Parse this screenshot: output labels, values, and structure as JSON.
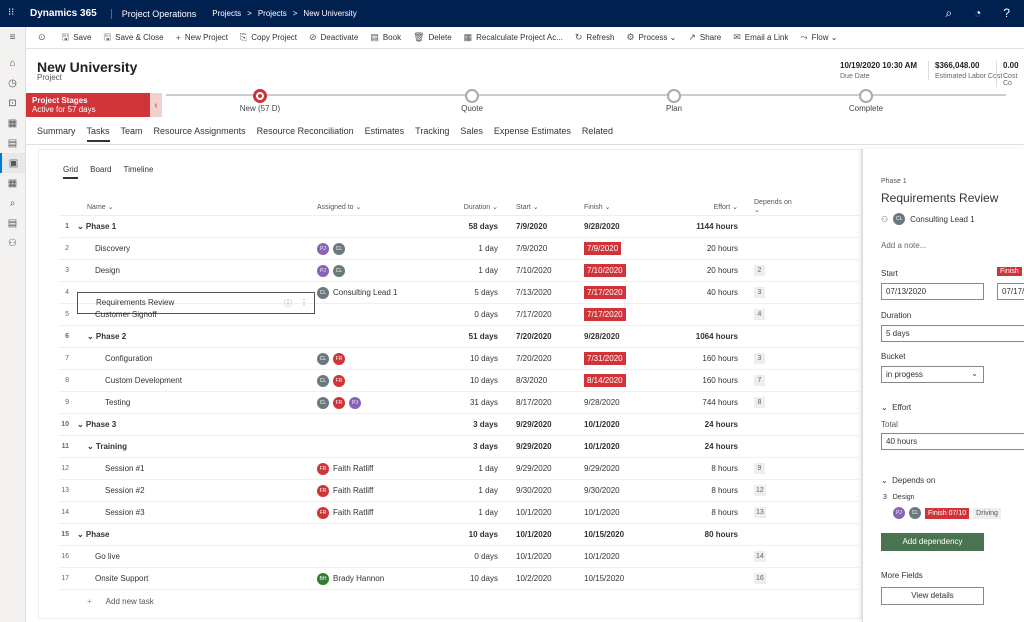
{
  "topbar": {
    "brand": "Dynamics 365",
    "app": "Project Operations",
    "crumbs": [
      "Projects",
      ">",
      "Projects",
      ">",
      "New University"
    ]
  },
  "leftnav": {
    "icons": [
      "hamburger-icon",
      "home-icon",
      "recent-icon",
      "pinned-icon",
      "calendar-icon",
      "document-icon",
      "projects-icon",
      "calendar2-icon",
      "search-doc-icon",
      "report-icon",
      "people-icon"
    ]
  },
  "cmdbar": {
    "items": [
      {
        "icon": "⊙",
        "label": ""
      },
      {
        "icon": "🖫",
        "label": "Save"
      },
      {
        "icon": "🖫",
        "label": "Save & Close"
      },
      {
        "icon": "+",
        "label": "New Project"
      },
      {
        "icon": "⎘",
        "label": "Copy Project"
      },
      {
        "icon": "⊘",
        "label": "Deactivate"
      },
      {
        "icon": "▤",
        "label": "Book"
      },
      {
        "icon": "🗑",
        "label": "Delete"
      },
      {
        "icon": "▦",
        "label": "Recalculate Project Ac..."
      },
      {
        "icon": "↻",
        "label": "Refresh"
      },
      {
        "icon": "⚙",
        "label": "Process ⌄"
      },
      {
        "icon": "↗",
        "label": "Share"
      },
      {
        "icon": "✉",
        "label": "Email a Link"
      },
      {
        "icon": "⤳",
        "label": "Flow ⌄"
      }
    ]
  },
  "header": {
    "title": "New University",
    "subtitle": "Project",
    "fields": [
      {
        "value": "10/19/2020 10:30 AM",
        "label": "Due Date"
      },
      {
        "value": "$366,048.00",
        "label": "Estimated Labor Cost"
      },
      {
        "value": "0.00",
        "label": "Cost Co"
      }
    ]
  },
  "stages": {
    "flag_title": "Project Stages",
    "flag_sub": "Active for 57 days",
    "items": [
      {
        "label": "New  (57 D)",
        "current": true
      },
      {
        "label": "Quote",
        "current": false
      },
      {
        "label": "Plan",
        "current": false
      },
      {
        "label": "Complete",
        "current": false
      }
    ]
  },
  "tabs": [
    "Summary",
    "Tasks",
    "Team",
    "Resource Assignments",
    "Resource Reconciliation",
    "Estimates",
    "Tracking",
    "Sales",
    "Expense Estimates",
    "Related"
  ],
  "active_tab": "Tasks",
  "views": [
    "Grid",
    "Board",
    "Timeline"
  ],
  "grid": {
    "headers": {
      "name": "Name ⌄",
      "assigned": "Assigned to ⌄",
      "duration": "Duration ⌄",
      "start": "Start ⌄",
      "finish": "Finish ⌄",
      "effort": "Effort ⌄",
      "depends": "Depends on ⌄"
    },
    "rows": [
      {
        "n": "1",
        "name": "⌄ Phase 1",
        "indent": 0,
        "phase": true,
        "assigned": "",
        "avatars": [],
        "duration": "58 days",
        "start": "7/9/2020",
        "finish": "9/28/2020",
        "red": false,
        "effort": "1144 hours",
        "dep": ""
      },
      {
        "n": "2",
        "name": "Discovery",
        "indent": 1,
        "phase": false,
        "assigned": "",
        "avatars": [
          "purple",
          "gray"
        ],
        "duration": "1 day",
        "start": "7/9/2020",
        "finish": "7/9/2020",
        "red": true,
        "effort": "20 hours",
        "dep": ""
      },
      {
        "n": "3",
        "name": "Design",
        "indent": 1,
        "phase": false,
        "assigned": "",
        "avatars": [
          "purple",
          "gray"
        ],
        "duration": "1 day",
        "start": "7/10/2020",
        "finish": "7/10/2020",
        "red": true,
        "effort": "20 hours",
        "dep": "2"
      },
      {
        "n": "4",
        "name": "Requirements Review",
        "indent": 1,
        "phase": false,
        "selected": true,
        "assigned": "Consulting Lead 1",
        "avatars": [
          "gray"
        ],
        "duration": "5 days",
        "start": "7/13/2020",
        "finish": "7/17/2020",
        "red": true,
        "effort": "40 hours",
        "dep": "3"
      },
      {
        "n": "5",
        "name": "Customer Signoff",
        "indent": 1,
        "phase": false,
        "assigned": "",
        "avatars": [],
        "duration": "0 days",
        "start": "7/17/2020",
        "finish": "7/17/2020",
        "red": true,
        "effort": "",
        "dep": "4"
      },
      {
        "n": "6",
        "name": "⌄ Phase 2",
        "indent": 1,
        "phase": true,
        "assigned": "",
        "avatars": [],
        "duration": "51 days",
        "start": "7/20/2020",
        "finish": "9/28/2020",
        "red": false,
        "effort": "1064 hours",
        "dep": ""
      },
      {
        "n": "7",
        "name": "Configuration",
        "indent": 2,
        "phase": false,
        "assigned": "",
        "avatars": [
          "gray",
          "red"
        ],
        "duration": "10 days",
        "start": "7/20/2020",
        "finish": "7/31/2020",
        "red": true,
        "effort": "160 hours",
        "dep": "3"
      },
      {
        "n": "8",
        "name": "Custom Development",
        "indent": 2,
        "phase": false,
        "assigned": "",
        "avatars": [
          "gray",
          "red"
        ],
        "duration": "10 days",
        "start": "8/3/2020",
        "finish": "8/14/2020",
        "red": true,
        "effort": "160 hours",
        "dep": "7"
      },
      {
        "n": "9",
        "name": "Testing",
        "indent": 2,
        "phase": false,
        "assigned": "",
        "avatars": [
          "gray",
          "red",
          "purple"
        ],
        "duration": "31 days",
        "start": "8/17/2020",
        "finish": "9/28/2020",
        "red": false,
        "effort": "744 hours",
        "dep": "8"
      },
      {
        "n": "10",
        "name": "⌄ Phase 3",
        "indent": 0,
        "phase": true,
        "assigned": "",
        "avatars": [],
        "duration": "3 days",
        "start": "9/29/2020",
        "finish": "10/1/2020",
        "red": false,
        "effort": "24 hours",
        "dep": ""
      },
      {
        "n": "11",
        "name": "⌄ Training",
        "indent": 1,
        "phase": true,
        "assigned": "",
        "avatars": [],
        "duration": "3 days",
        "start": "9/29/2020",
        "finish": "10/1/2020",
        "red": false,
        "effort": "24 hours",
        "dep": ""
      },
      {
        "n": "12",
        "name": "Session #1",
        "indent": 2,
        "phase": false,
        "assigned": "Faith Ratliff",
        "avatars": [
          "red"
        ],
        "duration": "1 day",
        "start": "9/29/2020",
        "finish": "9/29/2020",
        "red": false,
        "effort": "8 hours",
        "dep": "9"
      },
      {
        "n": "13",
        "name": "Session #2",
        "indent": 2,
        "phase": false,
        "assigned": "Faith Ratliff",
        "avatars": [
          "red"
        ],
        "duration": "1 day",
        "start": "9/30/2020",
        "finish": "9/30/2020",
        "red": false,
        "effort": "8 hours",
        "dep": "12"
      },
      {
        "n": "14",
        "name": "Session #3",
        "indent": 2,
        "phase": false,
        "assigned": "Faith Ratliff",
        "avatars": [
          "red"
        ],
        "duration": "1 day",
        "start": "10/1/2020",
        "finish": "10/1/2020",
        "red": false,
        "effort": "8 hours",
        "dep": "13"
      },
      {
        "n": "15",
        "name": "⌄ Phase",
        "indent": 0,
        "phase": true,
        "assigned": "",
        "avatars": [],
        "duration": "10 days",
        "start": "10/1/2020",
        "finish": "10/15/2020",
        "red": false,
        "effort": "80 hours",
        "dep": ""
      },
      {
        "n": "16",
        "name": "Go live",
        "indent": 1,
        "phase": false,
        "assigned": "",
        "avatars": [],
        "duration": "0 days",
        "start": "10/1/2020",
        "finish": "10/1/2020",
        "red": false,
        "effort": "",
        "dep": "14"
      },
      {
        "n": "17",
        "name": "Onsite Support",
        "indent": 1,
        "phase": false,
        "assigned": "Brady Hannon",
        "avatars": [
          "green"
        ],
        "duration": "10 days",
        "start": "10/2/2020",
        "finish": "10/15/2020",
        "red": false,
        "effort": "",
        "dep": "16"
      }
    ],
    "add_label": "Add new task"
  },
  "panel": {
    "phase": "Phase 1",
    "title": "Requirements Review",
    "assignee": "Consulting Lead 1",
    "note": "Add a note...",
    "start_label": "Start",
    "start_value": "07/13/2020",
    "finish_label": "Finish",
    "finish_value": "07/17/",
    "duration_label": "Duration",
    "duration_value": "5 days",
    "bucket_label": "Bucket",
    "bucket_value": "in progess",
    "effort_label": "Effort",
    "total_label": "Total",
    "total_value": "40 hours",
    "depends_label": "Depends on",
    "dep_num": "3",
    "dep_name": "Design",
    "dep_finish": "Finish 07/10",
    "dep_driving": "Driving",
    "add_dep": "Add dependency",
    "more_fields": "More Fields",
    "view_details": "View details"
  }
}
